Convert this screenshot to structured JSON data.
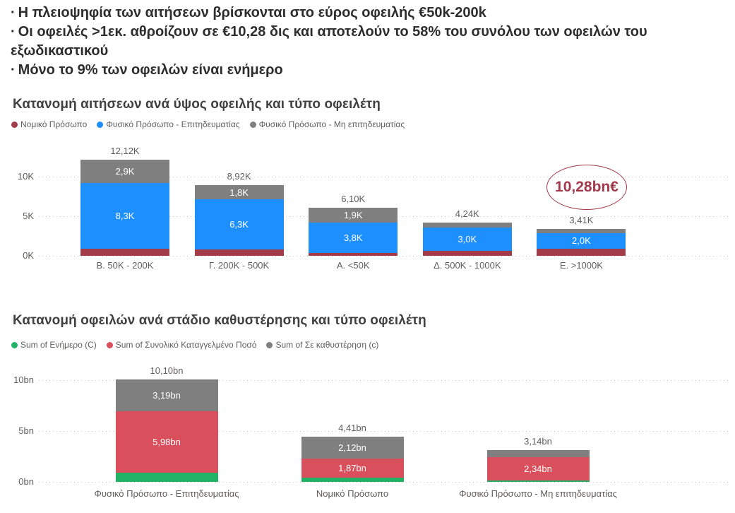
{
  "header": {
    "bullet": "·",
    "bullets": [
      "Η πλειοψηφία των αιτήσεων βρίσκονται στο εύρος οφειλής €50k-200k",
      "Οι οφειλές >1εκ. αθροίζουν σε €10,28 δις και αποτελούν το 58% του συνόλου των οφειλών του εξωδικαστικού",
      "Μόνο το 9% των οφειλών είναι ενήμερο"
    ]
  },
  "chart_data": [
    {
      "type": "bar",
      "stacked": true,
      "title": "Κατανομή αιτήσεων ανά ύψος οφειλής και τύπο οφειλέτη",
      "unit": "K",
      "grid": true,
      "legend_position": "top",
      "ylim": [
        0,
        12.5
      ],
      "categories": [
        "Β. 50K - 200K",
        "Γ. 200K - 500K",
        "Α. <50K",
        "Δ. 500K - 1000K",
        "Ε. >1000K"
      ],
      "series": [
        {
          "name": "Νομικό Πρόσωπο",
          "color": "#A23C49",
          "values": [
            0.92,
            0.82,
            0.4,
            0.6,
            0.88
          ],
          "labels": [
            "",
            "",
            "",
            "",
            ""
          ]
        },
        {
          "name": "Φυσικό Πρόσωπο - Επιτηδευματίας",
          "color": "#1E8FFF",
          "values": [
            8.3,
            6.3,
            3.8,
            3.0,
            2.0
          ],
          "labels": [
            "8,3K",
            "6,3K",
            "3,8K",
            "3,0K",
            "2,0K"
          ]
        },
        {
          "name": "Φυσικό Πρόσωπο - Μη επιτηδευματίας",
          "color": "#7F7F7F",
          "values": [
            2.9,
            1.8,
            1.9,
            0.64,
            0.53
          ],
          "labels": [
            "2,9K",
            "1,8K",
            "1,9K",
            "",
            ""
          ]
        }
      ],
      "totals": [
        12.12,
        8.92,
        6.1,
        4.24,
        3.41
      ],
      "total_labels": [
        "12,12K",
        "8,92K",
        "6,10K",
        "4,24K",
        "3,41K"
      ],
      "y_ticks": [
        {
          "value": 0,
          "label": "0K"
        },
        {
          "value": 5,
          "label": "5K"
        },
        {
          "value": 10,
          "label": "10K"
        }
      ],
      "annotation": {
        "text": "10,28bn€",
        "color": "#A3394A"
      }
    },
    {
      "type": "bar",
      "stacked": true,
      "title": "Κατανομή οφειλών ανά στάδιο καθυστέρησης και τύπο οφειλέτη",
      "unit": "bn",
      "grid": true,
      "legend_position": "top",
      "ylim": [
        0,
        12.5
      ],
      "categories": [
        "Φυσικό Πρόσωπο - Επιτηδευματίας",
        "Νομικό Πρόσωπο",
        "Φυσικό Πρόσωπο - Μη επιτηδευματίας"
      ],
      "series": [
        {
          "name": "Sum of Ενήμερο (C)",
          "color": "#22B266",
          "values": [
            0.93,
            0.42,
            0.12
          ],
          "labels": [
            "",
            "",
            ""
          ]
        },
        {
          "name": "Sum of Συνολικό Καταγγελμένο Ποσό",
          "color": "#D94F5C",
          "values": [
            5.98,
            1.87,
            2.34
          ],
          "labels": [
            "5,98bn",
            "1,87bn",
            "2,34bn"
          ]
        },
        {
          "name": "Sum of Σε καθυστέρηση (c)",
          "color": "#7F7F7F",
          "values": [
            3.19,
            2.12,
            0.68
          ],
          "labels": [
            "3,19bn",
            "2,12bn",
            ""
          ]
        }
      ],
      "totals": [
        10.1,
        4.41,
        3.14
      ],
      "total_labels": [
        "10,10bn",
        "4,41bn",
        "3,14bn"
      ],
      "y_ticks": [
        {
          "value": 0,
          "label": "0bn"
        },
        {
          "value": 5,
          "label": "5bn"
        },
        {
          "value": 10,
          "label": "10bn"
        }
      ]
    }
  ]
}
